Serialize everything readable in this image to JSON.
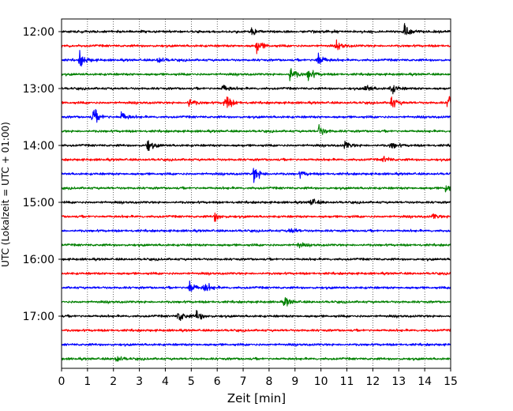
{
  "chart_data": {
    "type": "line",
    "xlabel": "Zeit  [min]",
    "ylabel": "UTC (Lokalzeit = UTC + 01:00)",
    "xlim": [
      0,
      15
    ],
    "x_ticks": [
      "0",
      "1",
      "2",
      "3",
      "4",
      "5",
      "6",
      "7",
      "8",
      "9",
      "10",
      "11",
      "12",
      "13",
      "14",
      "15"
    ],
    "y_ticks": [
      {
        "label": "12:00",
        "trace": 0
      },
      {
        "label": "13:00",
        "trace": 4
      },
      {
        "label": "14:00",
        "trace": 8
      },
      {
        "label": "15:00",
        "trace": 12
      },
      {
        "label": "16:00",
        "trace": 16
      },
      {
        "label": "17:00",
        "trace": 20
      }
    ],
    "trace_minutes": 15,
    "traces_per_hour": 4,
    "trace_count": 24,
    "color_cycle": [
      "#000000",
      "#ff0000",
      "#0000ff",
      "#008000"
    ],
    "grid": "vertical dotted",
    "events": [
      {
        "trace": 0,
        "minute": 7.3,
        "amp": 0.5
      },
      {
        "trace": 0,
        "minute": 13.2,
        "amp": 1.0
      },
      {
        "trace": 1,
        "minute": 7.5,
        "amp": 0.8
      },
      {
        "trace": 1,
        "minute": 10.6,
        "amp": 0.5
      },
      {
        "trace": 2,
        "minute": 0.7,
        "amp": 0.8
      },
      {
        "trace": 2,
        "minute": 3.7,
        "amp": 0.4
      },
      {
        "trace": 2,
        "minute": 9.85,
        "amp": 1.0
      },
      {
        "trace": 3,
        "minute": 8.8,
        "amp": 0.9
      },
      {
        "trace": 3,
        "minute": 9.5,
        "amp": 0.7
      },
      {
        "trace": 4,
        "minute": 6.2,
        "amp": 0.5
      },
      {
        "trace": 4,
        "minute": 11.7,
        "amp": 0.5
      },
      {
        "trace": 4,
        "minute": 12.7,
        "amp": 0.6
      },
      {
        "trace": 5,
        "minute": 4.9,
        "amp": 0.5
      },
      {
        "trace": 5,
        "minute": 6.3,
        "amp": 1.0
      },
      {
        "trace": 5,
        "minute": 12.7,
        "amp": 0.7
      },
      {
        "trace": 5,
        "minute": 14.9,
        "amp": 1.0
      },
      {
        "trace": 6,
        "minute": 1.2,
        "amp": 1.0
      },
      {
        "trace": 6,
        "minute": 2.3,
        "amp": 0.6
      },
      {
        "trace": 7,
        "minute": 9.9,
        "amp": 0.7
      },
      {
        "trace": 8,
        "minute": 3.3,
        "amp": 0.7
      },
      {
        "trace": 8,
        "minute": 10.9,
        "amp": 0.5
      },
      {
        "trace": 8,
        "minute": 12.7,
        "amp": 0.4
      },
      {
        "trace": 9,
        "minute": 12.4,
        "amp": 0.4
      },
      {
        "trace": 10,
        "minute": 7.4,
        "amp": 1.0
      },
      {
        "trace": 10,
        "minute": 9.2,
        "amp": 0.3
      },
      {
        "trace": 11,
        "minute": 14.8,
        "amp": 0.6
      },
      {
        "trace": 12,
        "minute": 9.6,
        "amp": 0.5
      },
      {
        "trace": 13,
        "minute": 5.9,
        "amp": 0.5
      },
      {
        "trace": 13,
        "minute": 14.3,
        "amp": 0.3
      },
      {
        "trace": 14,
        "minute": 8.8,
        "amp": 0.4
      },
      {
        "trace": 15,
        "minute": 9.1,
        "amp": 0.3
      },
      {
        "trace": 18,
        "minute": 4.9,
        "amp": 0.9
      },
      {
        "trace": 18,
        "minute": 5.5,
        "amp": 0.6
      },
      {
        "trace": 19,
        "minute": 8.6,
        "amp": 0.5
      },
      {
        "trace": 20,
        "minute": 4.5,
        "amp": 0.8
      },
      {
        "trace": 20,
        "minute": 5.2,
        "amp": 0.6
      },
      {
        "trace": 23,
        "minute": 2.1,
        "amp": 0.4
      }
    ]
  }
}
